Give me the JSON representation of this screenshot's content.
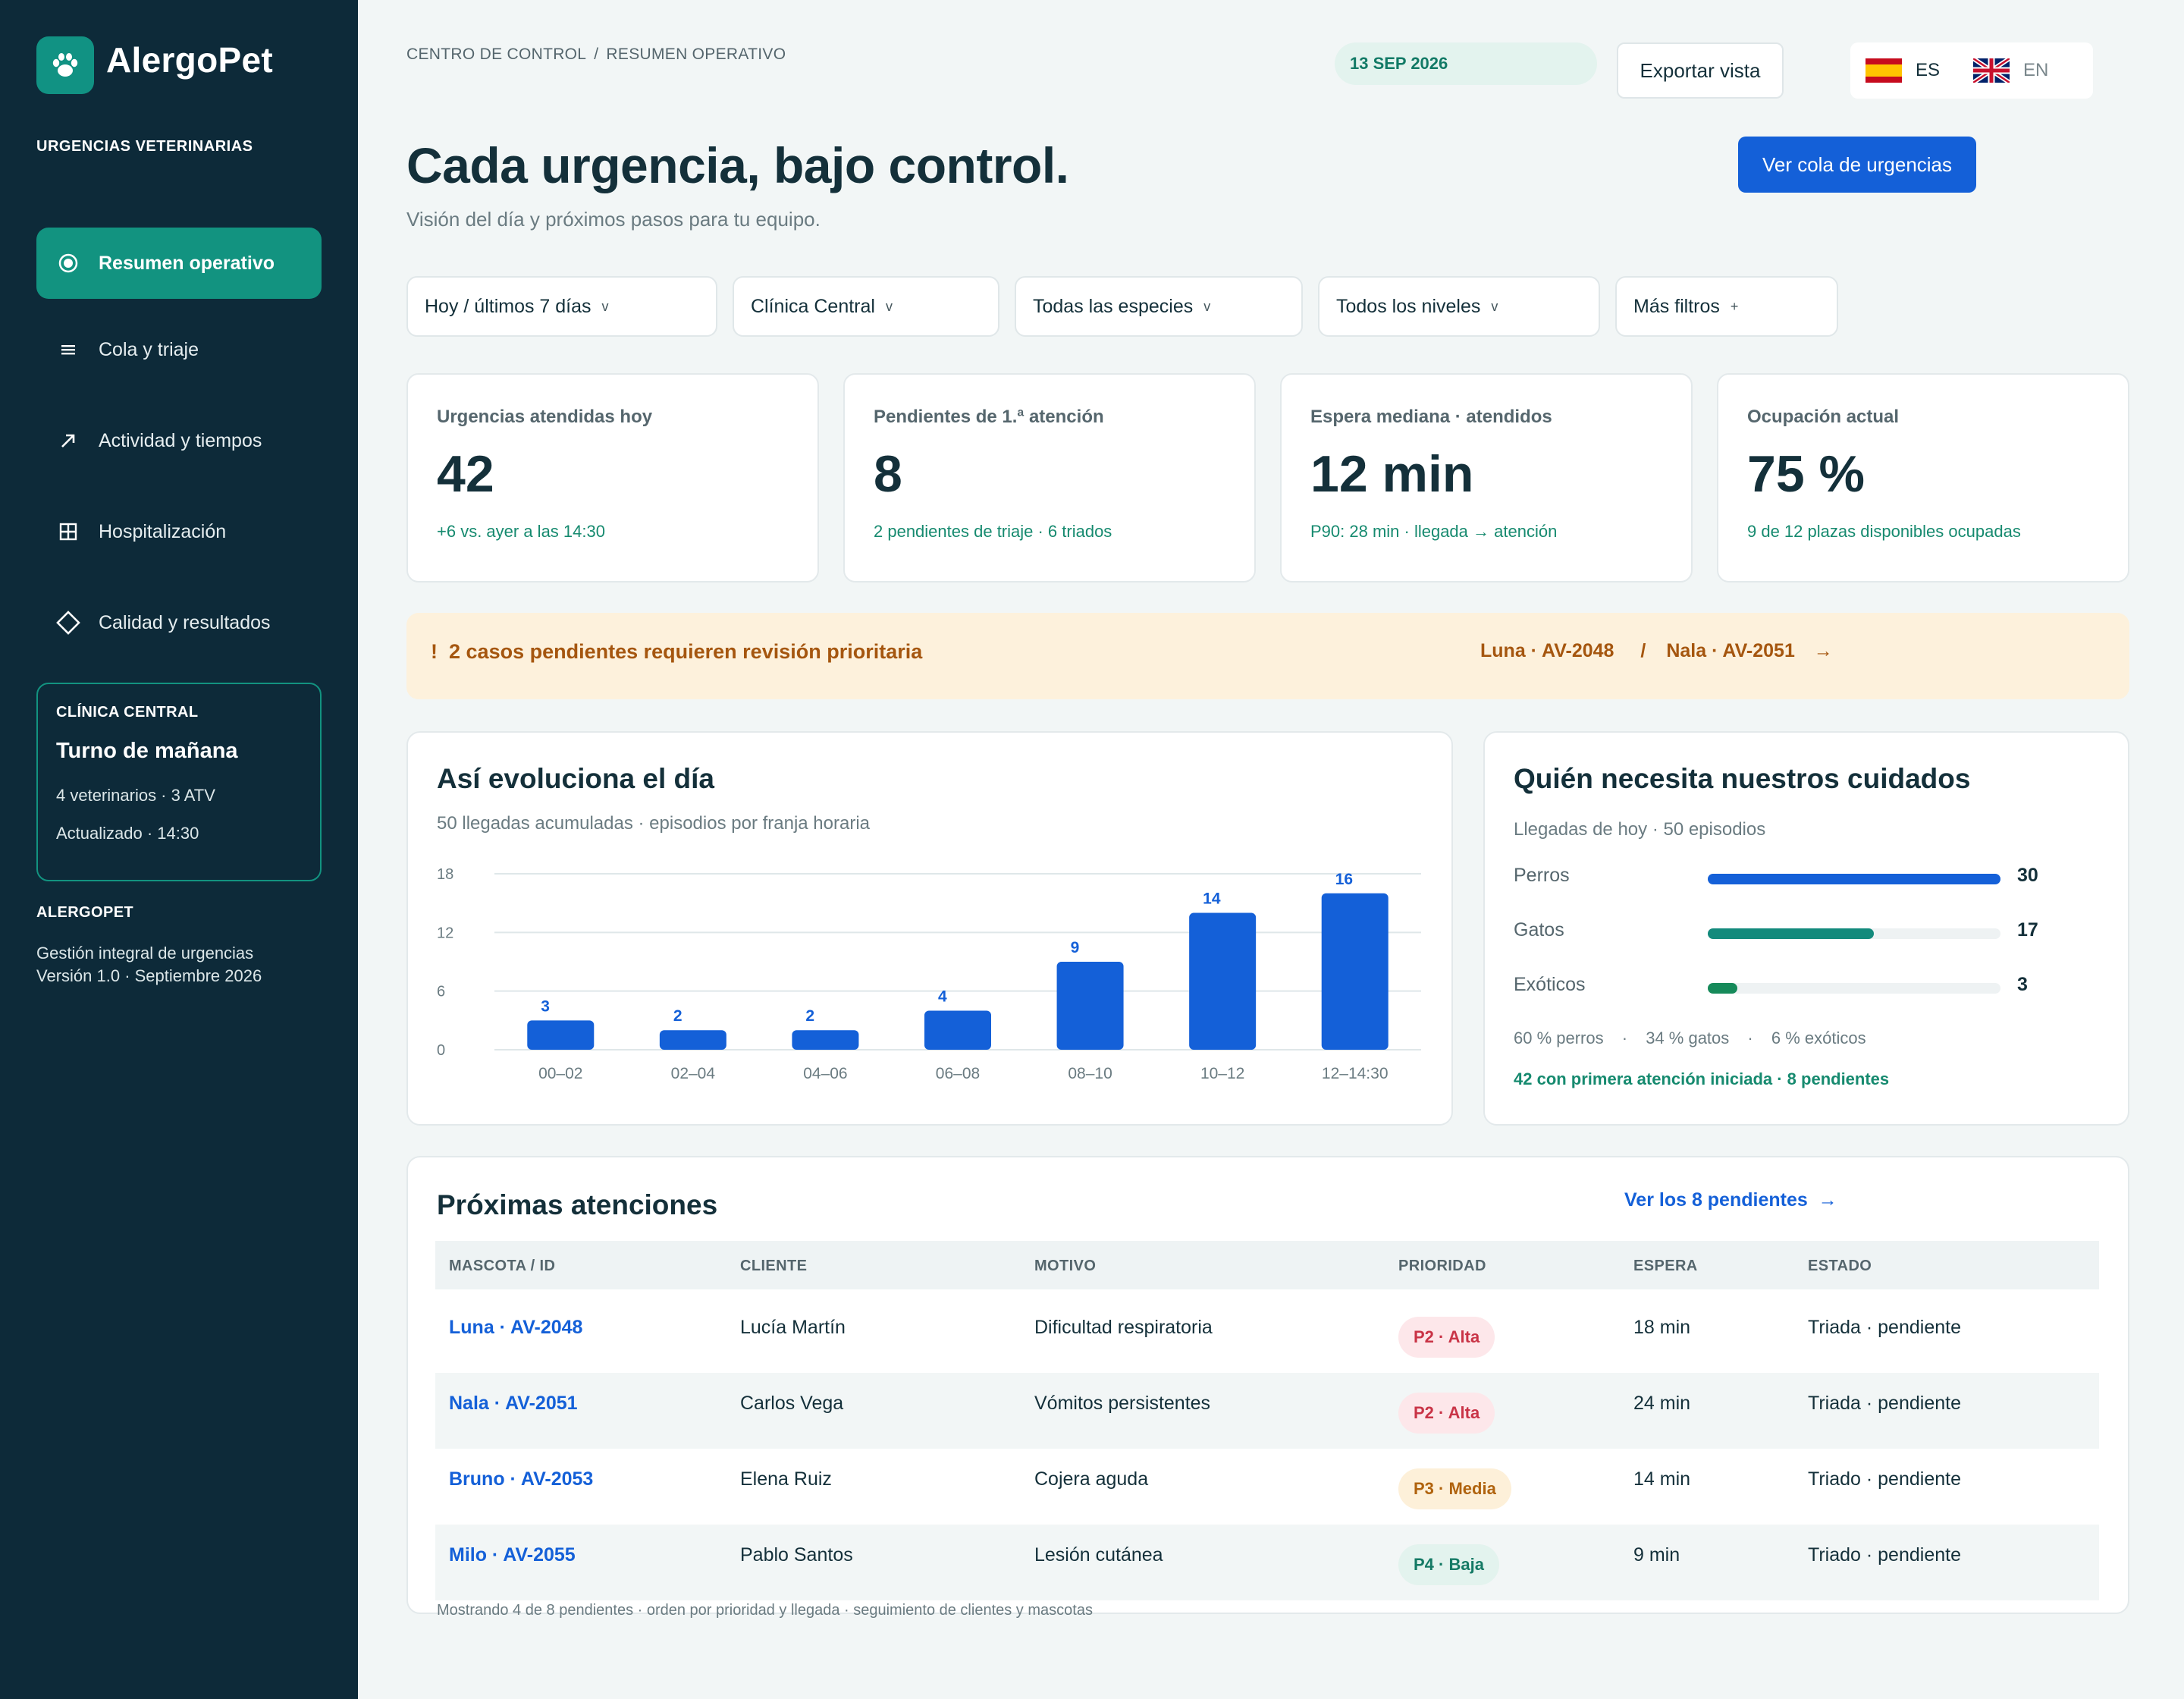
{
  "app": {
    "name": "AlergoPet",
    "section_caption": "URGENCIAS VETERINARIAS",
    "nav": [
      {
        "label": "Resumen operativo",
        "icon": "radio-dot-icon",
        "active": true
      },
      {
        "label": "Cola y triaje",
        "icon": "list-icon",
        "active": false
      },
      {
        "label": "Actividad y tiempos",
        "icon": "arrow-up-right-icon",
        "active": false
      },
      {
        "label": "Hospitalización",
        "icon": "grid-icon",
        "active": false
      },
      {
        "label": "Calidad y resultados",
        "icon": "diamond-icon",
        "active": false
      }
    ],
    "clinic": {
      "caption": "CLÍNICA CENTRAL",
      "title": "Turno de mañana",
      "line1": "4 veterinarios · 3 ATV",
      "line2": "Actualizado · 14:30"
    },
    "brand_caption": "ALERGOPET",
    "footer_line1": "Gestión integral de urgencias",
    "footer_line2": "Versión 1.0 · Septiembre 2026"
  },
  "header": {
    "breadcrumb": [
      "CENTRO DE CONTROL",
      "RESUMEN OPERATIVO"
    ],
    "date": "13 SEP 2026",
    "export_label": "Exportar vista",
    "languages": [
      {
        "code": "ES",
        "active": true
      },
      {
        "code": "EN",
        "active": false
      }
    ],
    "title": "Cada urgencia, bajo control.",
    "subtitle": "Visión del día y próximos pasos para tu equipo.",
    "primary_label": "Ver cola de urgencias"
  },
  "filters": [
    {
      "label": "Hoy / últimos 7 días",
      "suffix": "v"
    },
    {
      "label": "Clínica Central",
      "suffix": "v"
    },
    {
      "label": "Todas las especies",
      "suffix": "v"
    },
    {
      "label": "Todos los niveles",
      "suffix": "v"
    },
    {
      "label": "Más filtros",
      "suffix": "+"
    }
  ],
  "kpis": [
    {
      "label": "Urgencias atendidas hoy",
      "value": "42",
      "sub": "+6 vs. ayer a las 14:30"
    },
    {
      "label": "Pendientes de 1.ª atención",
      "value": "8",
      "sub": "2 pendientes de triaje · 6 triados"
    },
    {
      "label": "Espera mediana · atendidos",
      "value": "12 min",
      "sub": "P90: 28 min · llegada → atención"
    },
    {
      "label": "Ocupación actual",
      "value": "75 %",
      "sub": "9 de 12 plazas disponibles ocupadas"
    }
  ],
  "alert": {
    "icon": "!",
    "message": "2 casos pendientes requieren revisión prioritaria",
    "pet1": "Luna · AV-2048",
    "separator": "/",
    "pet2": "Nala · AV-2051",
    "arrow": "→"
  },
  "evolution": {
    "title": "Así evoluciona el día",
    "subtitle": "50 llegadas acumuladas · episodios por franja horaria"
  },
  "chart_data": {
    "type": "bar",
    "categories": [
      "00–02",
      "02–04",
      "04–06",
      "06–08",
      "08–10",
      "10–12",
      "12–14:30"
    ],
    "values": [
      3,
      2,
      2,
      4,
      9,
      14,
      16
    ],
    "yticks": [
      0,
      6,
      12,
      18
    ],
    "ylim": [
      0,
      18
    ],
    "grid": true,
    "color": "#1460d8"
  },
  "species": {
    "title": "Quién necesita nuestros cuidados",
    "subtitle": "Llegadas de hoy · 50 episodios",
    "rows": [
      {
        "name": "Perros",
        "value": 30,
        "color": "#1460d8"
      },
      {
        "name": "Gatos",
        "value": 17,
        "color": "#138a7c"
      },
      {
        "name": "Exóticos",
        "value": 3,
        "color": "#168a5a"
      }
    ],
    "max": 30,
    "shares": [
      "60 % perros",
      "34 % gatos",
      "6 % exóticos"
    ],
    "share_separator": "·",
    "footer": "42 con primera atención iniciada · 8 pendientes"
  },
  "queue": {
    "title": "Próximas atenciones",
    "link": "Ver los 8 pendientes",
    "link_arrow": "→",
    "columns": [
      "MASCOTA / ID",
      "CLIENTE",
      "MOTIVO",
      "PRIORIDAD",
      "ESPERA",
      "ESTADO"
    ],
    "rows": [
      {
        "pet": "Luna · AV-2048",
        "client": "Lucía Martín",
        "reason": "Dificultad respiratoria",
        "priority": "P2 · Alta",
        "level": "alta",
        "wait": "18 min",
        "status": "Triada · pendiente"
      },
      {
        "pet": "Nala · AV-2051",
        "client": "Carlos Vega",
        "reason": "Vómitos persistentes",
        "priority": "P2 · Alta",
        "level": "alta",
        "wait": "24 min",
        "status": "Triada · pendiente"
      },
      {
        "pet": "Bruno · AV-2053",
        "client": "Elena Ruiz",
        "reason": "Cojera aguda",
        "priority": "P3 · Media",
        "level": "media",
        "wait": "14 min",
        "status": "Triado · pendiente"
      },
      {
        "pet": "Milo · AV-2055",
        "client": "Pablo Santos",
        "reason": "Lesión cutánea",
        "priority": "P4 · Baja",
        "level": "baja",
        "wait": "9 min",
        "status": "Triado · pendiente"
      }
    ],
    "footnote": "Mostrando 4 de 8 pendientes · orden por prioridad y llegada · seguimiento de clientes y mascotas"
  },
  "colors": {
    "sidebar": "#0d2a39",
    "accent_green": "#129380",
    "primary_blue": "#1460d8",
    "alert_bg": "#fdf1dc"
  }
}
